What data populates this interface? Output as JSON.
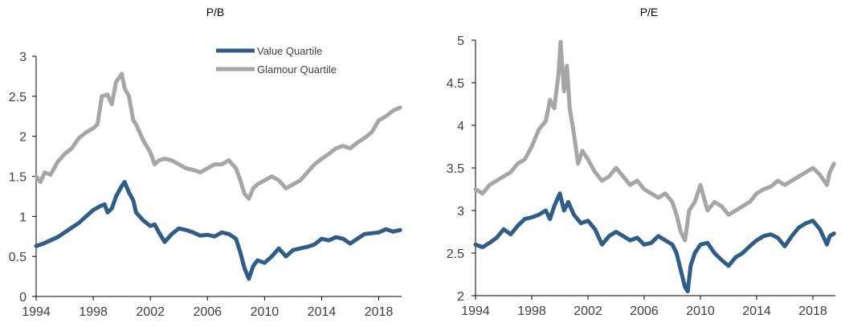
{
  "colors": {
    "value": "#2e5d8a",
    "glamour": "#a6a6a6"
  },
  "legend": {
    "value": "Value Quartile",
    "glamour": "Glamour Quartile"
  },
  "chart_data": [
    {
      "type": "line",
      "title": "P/B",
      "xlabel": "",
      "ylabel": "",
      "xlim": [
        1994,
        2019.6
      ],
      "ylim": [
        0,
        3
      ],
      "xticks": [
        1994,
        1998,
        2002,
        2006,
        2010,
        2014,
        2018
      ],
      "yticks": [
        0,
        0.5,
        1,
        1.5,
        2,
        2.5,
        3
      ],
      "ytick_labels": [
        "0",
        "0.5",
        "1",
        "1.5",
        "2",
        "2.5",
        "3"
      ],
      "legend_position": "top-center",
      "series": [
        {
          "name": "Value Quartile",
          "color": "#2e5d8a",
          "x": [
            1994,
            1994.5,
            1995,
            1995.5,
            1996,
            1996.5,
            1997,
            1997.5,
            1998,
            1998.5,
            1998.8,
            1999,
            1999.3,
            1999.6,
            2000,
            2000.2,
            2000.5,
            2000.8,
            2001,
            2001.5,
            2002,
            2002.3,
            2002.6,
            2003,
            2003.5,
            2004,
            2004.5,
            2005,
            2005.5,
            2006,
            2006.5,
            2007,
            2007.5,
            2008,
            2008.3,
            2008.6,
            2008.9,
            2009.2,
            2009.5,
            2010,
            2010.5,
            2011,
            2011.5,
            2012,
            2012.5,
            2013,
            2013.5,
            2014,
            2014.5,
            2015,
            2015.5,
            2016,
            2016.5,
            2017,
            2017.5,
            2018,
            2018.5,
            2019,
            2019.5
          ],
          "y": [
            0.63,
            0.66,
            0.7,
            0.74,
            0.8,
            0.86,
            0.92,
            1.0,
            1.08,
            1.13,
            1.15,
            1.05,
            1.1,
            1.25,
            1.38,
            1.43,
            1.3,
            1.2,
            1.05,
            0.95,
            0.88,
            0.9,
            0.8,
            0.68,
            0.78,
            0.85,
            0.83,
            0.8,
            0.76,
            0.77,
            0.75,
            0.8,
            0.78,
            0.72,
            0.55,
            0.35,
            0.22,
            0.38,
            0.45,
            0.42,
            0.5,
            0.6,
            0.5,
            0.58,
            0.6,
            0.62,
            0.65,
            0.72,
            0.7,
            0.74,
            0.72,
            0.66,
            0.72,
            0.78,
            0.79,
            0.8,
            0.84,
            0.81,
            0.83
          ]
        },
        {
          "name": "Glamour Quartile",
          "color": "#a6a6a6",
          "x": [
            1994,
            1994.3,
            1994.6,
            1995,
            1995.5,
            1996,
            1996.5,
            1997,
            1997.5,
            1998,
            1998.3,
            1998.6,
            1999,
            1999.3,
            1999.6,
            2000,
            2000.2,
            2000.5,
            2000.8,
            2001,
            2001.5,
            2002,
            2002.3,
            2002.6,
            2003,
            2003.5,
            2004,
            2004.5,
            2005,
            2005.5,
            2006,
            2006.5,
            2007,
            2007.5,
            2008,
            2008.3,
            2008.6,
            2008.9,
            2009.2,
            2009.5,
            2010,
            2010.5,
            2011,
            2011.5,
            2012,
            2012.5,
            2013,
            2013.5,
            2014,
            2014.5,
            2015,
            2015.5,
            2016,
            2016.5,
            2017,
            2017.5,
            2018,
            2018.5,
            2019,
            2019.5
          ],
          "y": [
            1.5,
            1.43,
            1.55,
            1.52,
            1.68,
            1.78,
            1.85,
            1.98,
            2.05,
            2.1,
            2.15,
            2.5,
            2.52,
            2.4,
            2.68,
            2.78,
            2.6,
            2.5,
            2.2,
            2.15,
            1.95,
            1.8,
            1.65,
            1.7,
            1.72,
            1.7,
            1.65,
            1.6,
            1.58,
            1.55,
            1.6,
            1.65,
            1.65,
            1.7,
            1.6,
            1.45,
            1.28,
            1.22,
            1.35,
            1.4,
            1.45,
            1.5,
            1.45,
            1.35,
            1.4,
            1.45,
            1.55,
            1.65,
            1.72,
            1.78,
            1.85,
            1.88,
            1.85,
            1.92,
            1.98,
            2.05,
            2.2,
            2.25,
            2.32,
            2.36
          ]
        }
      ]
    },
    {
      "type": "line",
      "title": "P/E",
      "xlabel": "",
      "ylabel": "",
      "xlim": [
        1994,
        2019.6
      ],
      "ylim": [
        2,
        5
      ],
      "xticks": [
        1994,
        1998,
        2002,
        2006,
        2010,
        2014,
        2018
      ],
      "yticks": [
        2,
        2.5,
        3,
        3.5,
        4,
        4.5,
        5
      ],
      "ytick_labels": [
        "2",
        "2.5",
        "3",
        "3.5",
        "4",
        "4.5",
        "5"
      ],
      "series": [
        {
          "name": "Value Quartile",
          "color": "#2e5d8a",
          "x": [
            1994,
            1994.5,
            1995,
            1995.5,
            1996,
            1996.5,
            1997,
            1997.5,
            1998,
            1998.5,
            1999,
            1999.3,
            1999.6,
            2000,
            2000.3,
            2000.6,
            2001,
            2001.5,
            2002,
            2002.5,
            2003,
            2003.5,
            2004,
            2004.5,
            2005,
            2005.5,
            2006,
            2006.5,
            2007,
            2007.5,
            2008,
            2008.3,
            2008.6,
            2008.9,
            2009.1,
            2009.3,
            2009.6,
            2010,
            2010.5,
            2011,
            2011.5,
            2012,
            2012.5,
            2013,
            2013.5,
            2014,
            2014.5,
            2015,
            2015.5,
            2016,
            2016.5,
            2017,
            2017.5,
            2018,
            2018.5,
            2019,
            2019.2,
            2019.5
          ],
          "y": [
            2.6,
            2.57,
            2.62,
            2.68,
            2.78,
            2.72,
            2.82,
            2.9,
            2.92,
            2.95,
            3.0,
            2.9,
            3.05,
            3.2,
            3.0,
            3.1,
            2.95,
            2.85,
            2.88,
            2.78,
            2.6,
            2.7,
            2.75,
            2.7,
            2.65,
            2.68,
            2.6,
            2.62,
            2.7,
            2.65,
            2.6,
            2.5,
            2.3,
            2.1,
            2.05,
            2.35,
            2.5,
            2.6,
            2.62,
            2.5,
            2.42,
            2.35,
            2.45,
            2.5,
            2.58,
            2.65,
            2.7,
            2.72,
            2.68,
            2.58,
            2.7,
            2.8,
            2.85,
            2.88,
            2.78,
            2.6,
            2.7,
            2.73
          ]
        },
        {
          "name": "Glamour Quartile",
          "color": "#a6a6a6",
          "x": [
            1994,
            1994.5,
            1995,
            1995.5,
            1996,
            1996.5,
            1997,
            1997.5,
            1998,
            1998.5,
            1999,
            1999.3,
            1999.6,
            1999.9,
            2000.05,
            2000.3,
            2000.5,
            2000.7,
            2001,
            2001.3,
            2001.6,
            2002,
            2002.5,
            2003,
            2003.5,
            2004,
            2004.5,
            2005,
            2005.5,
            2006,
            2006.5,
            2007,
            2007.5,
            2008,
            2008.3,
            2008.6,
            2008.9,
            2009.2,
            2009.6,
            2010,
            2010.5,
            2011,
            2011.5,
            2012,
            2012.5,
            2013,
            2013.5,
            2014,
            2014.5,
            2015,
            2015.5,
            2016,
            2016.5,
            2017,
            2017.5,
            2018,
            2018.5,
            2019,
            2019.2,
            2019.5
          ],
          "y": [
            3.25,
            3.2,
            3.3,
            3.35,
            3.4,
            3.45,
            3.55,
            3.6,
            3.75,
            3.95,
            4.05,
            4.3,
            4.2,
            4.6,
            4.98,
            4.4,
            4.7,
            4.2,
            3.9,
            3.55,
            3.7,
            3.6,
            3.45,
            3.35,
            3.4,
            3.5,
            3.4,
            3.3,
            3.35,
            3.25,
            3.2,
            3.15,
            3.2,
            3.1,
            2.95,
            2.75,
            2.65,
            3.0,
            3.1,
            3.3,
            3.0,
            3.1,
            3.05,
            2.95,
            3.0,
            3.05,
            3.1,
            3.2,
            3.25,
            3.28,
            3.35,
            3.3,
            3.35,
            3.4,
            3.45,
            3.5,
            3.42,
            3.3,
            3.45,
            3.55
          ]
        }
      ]
    }
  ]
}
